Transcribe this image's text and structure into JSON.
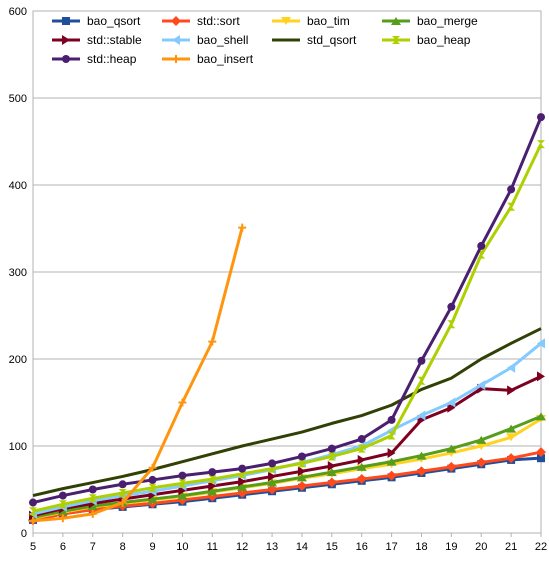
{
  "chart_data": {
    "type": "line",
    "title": "",
    "xlabel": "",
    "ylabel": "",
    "x": [
      5,
      6,
      7,
      8,
      9,
      10,
      11,
      12,
      13,
      14,
      15,
      16,
      17,
      18,
      19,
      20,
      21,
      22
    ],
    "xlim": [
      5,
      22
    ],
    "ylim": [
      0,
      600
    ],
    "yticks": [
      0,
      100,
      200,
      300,
      400,
      500,
      600
    ],
    "grid": true,
    "legend_position": "top-left",
    "series": [
      {
        "name": "bao_qsort",
        "color": "#1f4e9b",
        "marker": "square",
        "values": [
          15,
          22,
          27,
          30,
          33,
          36,
          40,
          44,
          48,
          52,
          56,
          60,
          64,
          69,
          74,
          79,
          84,
          86
        ]
      },
      {
        "name": "std::sort",
        "color": "#ff4a1c",
        "marker": "diamond",
        "values": [
          15,
          22,
          27,
          31,
          34,
          38,
          42,
          46,
          50,
          54,
          58,
          62,
          66,
          71,
          76,
          81,
          86,
          93
        ]
      },
      {
        "name": "bao_tim",
        "color": "#ffd320",
        "marker": "triangle-down",
        "values": [
          17,
          24,
          30,
          34,
          38,
          42,
          47,
          52,
          57,
          63,
          68,
          74,
          79,
          85,
          92,
          100,
          110,
          131
        ]
      },
      {
        "name": "bao_merge",
        "color": "#579d1c",
        "marker": "triangle-up",
        "values": [
          18,
          25,
          31,
          35,
          39,
          43,
          48,
          53,
          58,
          64,
          70,
          76,
          82,
          89,
          97,
          107,
          120,
          134
        ]
      },
      {
        "name": "std::stable",
        "color": "#7e0021",
        "marker": "triangle-right",
        "values": [
          20,
          28,
          34,
          39,
          44,
          49,
          54,
          59,
          65,
          71,
          77,
          84,
          92,
          130,
          144,
          166,
          164,
          180
        ]
      },
      {
        "name": "bao_shell",
        "color": "#83caff",
        "marker": "triangle-left",
        "values": [
          22,
          30,
          37,
          43,
          48,
          54,
          60,
          66,
          73,
          81,
          90,
          100,
          118,
          135,
          150,
          170,
          190,
          218
        ]
      },
      {
        "name": "std_qsort",
        "color": "#314004",
        "marker": "bowtie",
        "values": [
          43,
          51,
          58,
          65,
          73,
          82,
          91,
          100,
          108,
          116,
          126,
          135,
          147,
          165,
          178,
          200,
          218,
          235
        ]
      },
      {
        "name": "bao_heap",
        "color": "#aecf00",
        "marker": "hourglass",
        "values": [
          25,
          33,
          40,
          46,
          52,
          57,
          62,
          68,
          74,
          80,
          88,
          97,
          112,
          175,
          240,
          320,
          375,
          447
        ]
      },
      {
        "name": "std::heap",
        "color": "#4b1f6f",
        "marker": "circle",
        "values": [
          35,
          43,
          50,
          56,
          61,
          66,
          70,
          74,
          80,
          88,
          97,
          108,
          130,
          198,
          260,
          330,
          395,
          478
        ]
      },
      {
        "name": "bao_insert",
        "color": "#ff950e",
        "marker": "plus",
        "values": [
          14,
          17,
          22,
          35,
          75,
          150,
          220,
          351,
          null,
          null,
          null,
          null,
          null,
          null,
          null,
          null,
          null,
          null
        ]
      }
    ]
  }
}
